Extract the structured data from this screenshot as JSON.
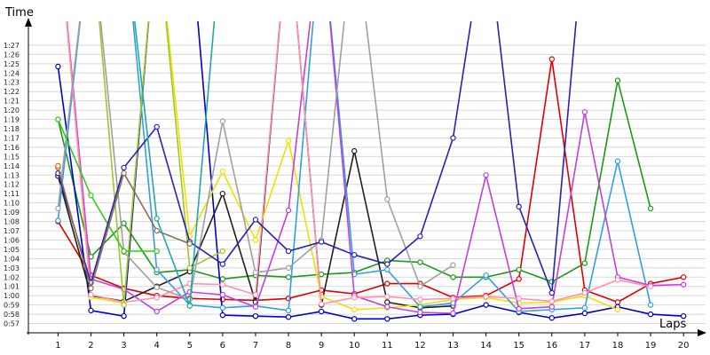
{
  "chart_data": {
    "type": "line",
    "title": "",
    "xlabel": "Laps",
    "ylabel": "Time",
    "x": [
      1,
      2,
      3,
      4,
      5,
      6,
      7,
      8,
      9,
      10,
      11,
      12,
      13,
      14,
      15,
      16,
      17,
      18,
      19,
      20
    ],
    "ylim_seconds": [
      56,
      89
    ],
    "xlim": [
      0.1,
      20.4
    ],
    "grid": "horizontal",
    "legend": "none",
    "y_tick_labels": [
      "0:57",
      "0:58",
      "0:59",
      "1:00",
      "1:01",
      "1:02",
      "1:03",
      "1:04",
      "1:05",
      "1:06",
      "1:07",
      "1:08",
      "1:09",
      "1:10",
      "1:11",
      "1:12",
      "1:13",
      "1:14",
      "1:15",
      "1:16",
      "1:17",
      "1:18",
      "1:19",
      "1:20",
      "1:21",
      "1:22",
      "1:23",
      "1:24",
      "1:25",
      "1:26",
      "1:27"
    ],
    "y_tick_values": [
      57,
      58,
      59,
      60,
      61,
      62,
      63,
      64,
      65,
      66,
      67,
      68,
      69,
      70,
      71,
      72,
      73,
      74,
      75,
      76,
      77,
      78,
      79,
      80,
      81,
      82,
      83,
      84,
      85,
      86,
      87
    ],
    "x_tick_labels": [
      "1",
      "2",
      "3",
      "4",
      "5",
      "6",
      "7",
      "8",
      "9",
      "10",
      "11",
      "12",
      "13",
      "14",
      "15",
      "16",
      "17",
      "18",
      "19",
      "20"
    ],
    "series": [
      {
        "color": "#e00000",
        "values": [
          68.0,
          62.2,
          60.8,
          60.0,
          59.7,
          59.6,
          59.5,
          59.7,
          60.6,
          60.2,
          61.3,
          61.3,
          59.8,
          60.0,
          61.8,
          85.5,
          60.6,
          59.3,
          61.3,
          62.0
        ]
      },
      {
        "color": "#1a9a1a",
        "values": [
          79.0,
          64.2,
          67.8,
          62.5,
          62.8,
          61.8,
          62.2,
          62.0,
          62.3,
          62.5,
          63.8,
          63.6,
          62.0,
          62.0,
          62.8,
          61.5,
          63.5,
          83.2,
          69.4,
          null
        ]
      },
      {
        "color": "#0000cc",
        "values": [
          84.7,
          58.4,
          57.8,
          100.0,
          100.0,
          57.9,
          57.8,
          57.7,
          58.3,
          57.5,
          57.5,
          57.9,
          58.0,
          59.0,
          58.2,
          57.6,
          58.1,
          58.8,
          58.0,
          57.8
        ]
      },
      {
        "color": "#202020",
        "values": [
          72.9,
          60.0,
          59.4,
          61.0,
          62.6,
          71.0,
          59.3,
          100.0,
          59.0,
          75.6,
          59.3,
          58.7,
          58.9,
          null,
          null,
          null,
          null,
          null,
          null,
          null
        ]
      },
      {
        "color": "#f0e000",
        "values": [
          100.0,
          59.8,
          59.2,
          100.0,
          66.4,
          73.4,
          66.0,
          76.7,
          59.9,
          58.5,
          58.7,
          59.0,
          59.6,
          59.8,
          59.2,
          59.3,
          60.0,
          58.5,
          null,
          null
        ]
      },
      {
        "color": "#30a0e0",
        "values": [
          68.1,
          100.0,
          100.0,
          62.8,
          59.0,
          58.7,
          58.9,
          58.4,
          100.0,
          62.3,
          62.8,
          58.8,
          59.2,
          62.2,
          58.3,
          58.5,
          58.7,
          74.5,
          59.0,
          null
        ]
      },
      {
        "color": "#c040e0",
        "values": [
          100.0,
          61.8,
          60.7,
          58.3,
          60.4,
          60.1,
          58.8,
          69.2,
          100.0,
          60.0,
          58.8,
          58.2,
          58.1,
          73.0,
          58.6,
          58.8,
          79.8,
          62.0,
          61.1,
          61.2
        ]
      },
      {
        "color": "#ff90b0",
        "values": [
          100.0,
          60.1,
          59.3,
          59.8,
          61.3,
          61.2,
          60.1,
          100.0,
          59.1,
          59.8,
          59.9,
          59.6,
          59.7,
          59.9,
          59.7,
          59.4,
          60.3,
          61.7,
          61.0,
          null
        ]
      },
      {
        "color": "#a0a0a0",
        "values": [
          69.4,
          100.0,
          64.7,
          60.9,
          59.6,
          78.8,
          62.5,
          63.0,
          66.0,
          100.0,
          70.4,
          61.0,
          63.3,
          null,
          null,
          null,
          null,
          null,
          null,
          null
        ]
      },
      {
        "color": "#9cc82a",
        "values": [
          100.0,
          100.0,
          59.0,
          100.0,
          63.0,
          64.8,
          null,
          null,
          null,
          null,
          null,
          null,
          null,
          null,
          null,
          null,
          null,
          null,
          null,
          null
        ]
      },
      {
        "color": "#32cc10",
        "values": [
          79.0,
          70.8,
          64.8,
          64.8,
          null,
          null,
          null,
          null,
          null,
          null,
          null,
          null,
          null,
          null,
          null,
          null,
          null,
          null,
          null,
          null
        ]
      },
      {
        "color": "#2a20b8",
        "values": [
          73.2,
          61.4,
          73.8,
          78.2,
          65.8,
          63.4,
          68.2,
          64.8,
          65.8,
          64.4,
          63.4,
          66.4,
          77.0,
          100.0,
          69.6,
          60.3,
          100.0,
          null,
          null,
          null
        ]
      },
      {
        "color": "#8a7050",
        "values": [
          73.8,
          60.8,
          73.2,
          67.0,
          65.6,
          null,
          null,
          null,
          null,
          null,
          null,
          null,
          null,
          null,
          null,
          null,
          null,
          null,
          null,
          null
        ]
      },
      {
        "color": "#20a8a8",
        "values": [
          100.0,
          100.0,
          100.0,
          68.3,
          58.9,
          100.0,
          null,
          null,
          null,
          null,
          null,
          null,
          null,
          null,
          null,
          null,
          null,
          null,
          null,
          null
        ]
      },
      {
        "color": "#e07020",
        "values": [
          74.0,
          null,
          null,
          null,
          null,
          null,
          null,
          null,
          null,
          null,
          null,
          null,
          null,
          null,
          null,
          null,
          null,
          null,
          null,
          null
        ]
      }
    ]
  }
}
